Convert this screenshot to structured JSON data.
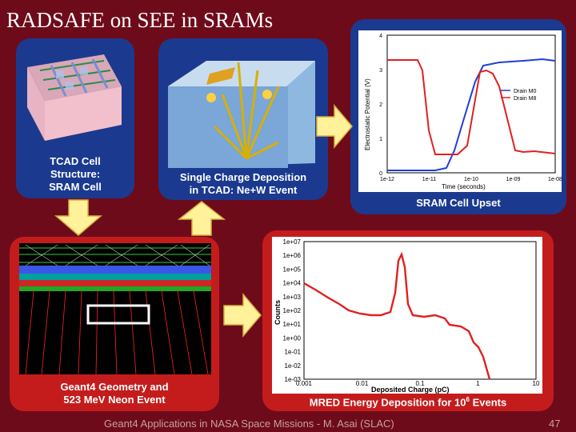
{
  "title": "RADSAFE on SEE in SRAMs",
  "panels": {
    "tcad_cell": "TCAD Cell\nStructure:\nSRAM Cell",
    "charge_deposition": "Single Charge Deposition\nin TCAD: Ne+W Event",
    "sram_upset": "SRAM Cell Upset",
    "geant4": "Geant4 Geometry and\n523 MeV Neon Event",
    "mred": "MRED Energy Deposition for 10",
    "mred_sup": "6",
    "mred_tail": " Events"
  },
  "upset_plot": {
    "ylabel": "Electrostatic Potential (V)",
    "xlabel": "Time (seconds)",
    "yticks": [
      "0",
      "1",
      "2",
      "3",
      "4"
    ],
    "xticks": [
      "1e-12",
      "1e-11",
      "1e-10",
      "1e-09",
      "1e-08"
    ],
    "legend": [
      "Drain M0",
      "Drain M8"
    ]
  },
  "mred_plot": {
    "ylabel": "Counts",
    "xlabel": "Deposited Charge (pC)",
    "yticks": [
      "1e+07",
      "1e+06",
      "1e+05",
      "1e+04",
      "1e+03",
      "1e+02",
      "1e+01",
      "1e+00",
      "1e-01",
      "1e-02",
      "1e-03"
    ],
    "xticks": [
      "0.001",
      "0.01",
      "0.1",
      "1",
      "10"
    ]
  },
  "footer": "Geant4 Applications in NASA Space Missions - M. Asai (SLAC)",
  "page_number": "47",
  "colors": {
    "background": "#6e0b1a",
    "blue_panel": "#1b3a8f",
    "red_panel": "#c41c1c",
    "arrow_fill": "#fff29a",
    "series_m0": "#1f3fd6",
    "series_m8": "#e02020"
  }
}
